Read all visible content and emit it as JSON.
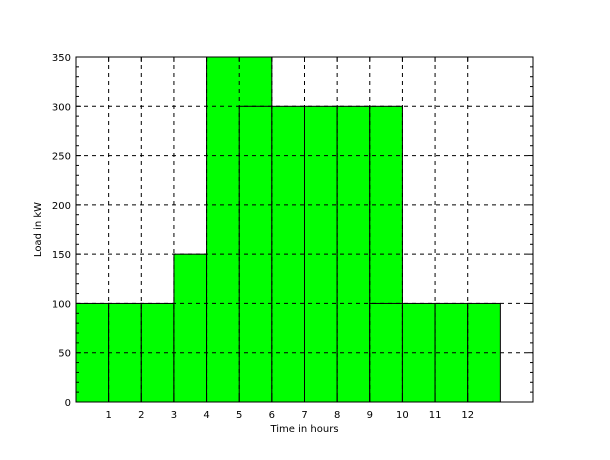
{
  "chart_data": {
    "type": "bar",
    "title": "",
    "xlabel": "Time in hours",
    "ylabel": "Load in kW",
    "x_tick_labels": [
      "1",
      "2",
      "3",
      "4",
      "5",
      "6",
      "7",
      "8",
      "9",
      "10",
      "11",
      "12"
    ],
    "y_tick_labels": [
      "0",
      "50",
      "100",
      "150",
      "200",
      "250",
      "300",
      "350"
    ],
    "xlim": [
      0,
      14
    ],
    "ylim": [
      0,
      350
    ],
    "grid": true,
    "bar_color": "#00ff00",
    "bars": [
      {
        "x_start": 0,
        "x_end": 1,
        "value": 100
      },
      {
        "x_start": 1,
        "x_end": 2,
        "value": 100
      },
      {
        "x_start": 2,
        "x_end": 3,
        "value": 100
      },
      {
        "x_start": 3,
        "x_end": 4,
        "value": 100
      },
      {
        "x_start": 3,
        "x_end": 4,
        "value": 150
      },
      {
        "x_start": 4,
        "x_end": 5,
        "value": 150
      },
      {
        "x_start": 4,
        "x_end": 6,
        "value": 350
      },
      {
        "x_start": 5,
        "x_end": 6,
        "value": 300
      },
      {
        "x_start": 6,
        "x_end": 7,
        "value": 300
      },
      {
        "x_start": 7,
        "x_end": 8,
        "value": 300
      },
      {
        "x_start": 8,
        "x_end": 9,
        "value": 300
      },
      {
        "x_start": 9,
        "x_end": 10,
        "value": 300
      },
      {
        "x_start": 9,
        "x_end": 10,
        "value": 100
      },
      {
        "x_start": 10,
        "x_end": 11,
        "value": 100
      },
      {
        "x_start": 11,
        "x_end": 12,
        "value": 100
      },
      {
        "x_start": 12,
        "x_end": 13,
        "value": 100
      }
    ]
  }
}
